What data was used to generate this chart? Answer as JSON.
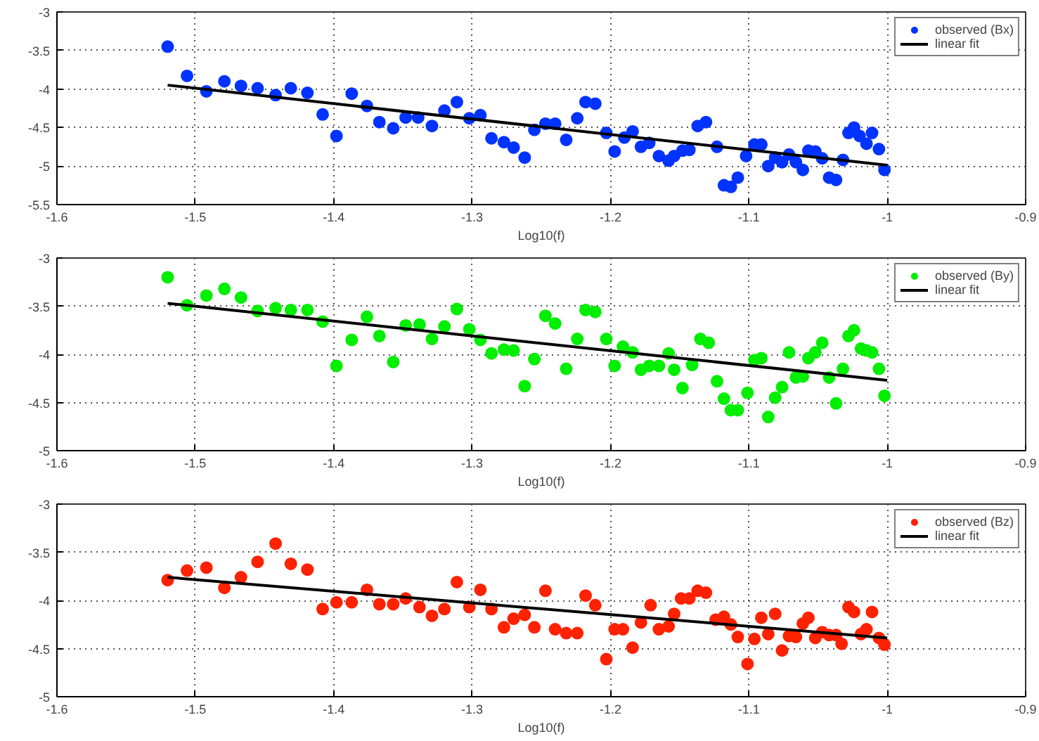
{
  "chart_data": [
    {
      "type": "scatter",
      "xlabel": "Log10(f)",
      "xlim": [
        -1.6,
        -0.9
      ],
      "xticks": [
        -1.6,
        -1.5,
        -1.4,
        -1.3,
        -1.2,
        -1.1,
        -1,
        -0.9
      ],
      "ylim": [
        -5.5,
        -3
      ],
      "yticks": [
        -5.5,
        -5,
        -4.5,
        -4,
        -3.5,
        -3
      ],
      "grid": true,
      "legend": "top right",
      "marker": "circle",
      "series": [
        {
          "name": "observed (Bx)",
          "color": "#0033ff",
          "x": [
            -1.52,
            -1.506,
            -1.492,
            -1.479,
            -1.467,
            -1.455,
            -1.442,
            -1.431,
            -1.419,
            -1.408,
            -1.398,
            -1.387,
            -1.376,
            -1.367,
            -1.357,
            -1.348,
            -1.339,
            -1.329,
            -1.32,
            -1.311,
            -1.302,
            -1.294,
            -1.286,
            -1.277,
            -1.27,
            -1.262,
            -1.255,
            -1.247,
            -1.24,
            -1.232,
            -1.224,
            -1.218,
            -1.211,
            -1.203,
            -1.197,
            -1.19,
            -1.184,
            -1.178,
            -1.172,
            -1.165,
            -1.158,
            -1.154,
            -1.148,
            -1.143,
            -1.137,
            -1.131,
            -1.123,
            -1.118,
            -1.113,
            -1.108,
            -1.102,
            -1.096,
            -1.091,
            -1.086,
            -1.081,
            -1.076,
            -1.071,
            -1.066,
            -1.061,
            -1.057,
            -1.052,
            -1.047,
            -1.042,
            -1.037,
            -1.032,
            -1.028,
            -1.024,
            -1.02,
            -1.015,
            -1.011,
            -1.006,
            -1.002
          ],
          "values": [
            -3.45,
            -3.83,
            -4.03,
            -3.9,
            -3.96,
            -3.99,
            -4.08,
            -3.99,
            -4.05,
            -4.33,
            -4.61,
            -4.06,
            -4.22,
            -4.43,
            -4.51,
            -4.37,
            -4.37,
            -4.48,
            -4.28,
            -4.17,
            -4.38,
            -4.34,
            -4.64,
            -4.69,
            -4.76,
            -4.89,
            -4.53,
            -4.45,
            -4.45,
            -4.66,
            -4.38,
            -4.17,
            -4.19,
            -4.57,
            -4.81,
            -4.63,
            -4.55,
            -4.75,
            -4.7,
            -4.87,
            -4.93,
            -4.87,
            -4.8,
            -4.79,
            -4.48,
            -4.43,
            -4.75,
            -5.25,
            -5.27,
            -5.15,
            -4.87,
            -4.72,
            -4.72,
            -5.0,
            -4.89,
            -4.95,
            -4.85,
            -4.95,
            -5.05,
            -4.8,
            -4.81,
            -4.9,
            -5.15,
            -5.18,
            -4.92,
            -4.57,
            -4.5,
            -4.61,
            -4.71,
            -4.57,
            -4.78,
            -5.05
          ]
        },
        {
          "name": "linear fit",
          "type": "line",
          "color": "#000000",
          "x": [
            -1.52,
            -1.0
          ],
          "values": [
            -3.95,
            -4.99
          ],
          "marker": "none"
        }
      ]
    },
    {
      "type": "scatter",
      "xlabel": "Log10(f)",
      "xlim": [
        -1.6,
        -0.9
      ],
      "xticks": [
        -1.6,
        -1.5,
        -1.4,
        -1.3,
        -1.2,
        -1.1,
        -1,
        -0.9
      ],
      "ylim": [
        -5,
        -3
      ],
      "yticks": [
        -5,
        -4.5,
        -4,
        -3.5,
        -3
      ],
      "grid": true,
      "legend": "top right",
      "marker": "circle",
      "series": [
        {
          "name": "observed (By)",
          "color": "#00ee00",
          "x": [
            -1.52,
            -1.506,
            -1.492,
            -1.479,
            -1.467,
            -1.455,
            -1.442,
            -1.431,
            -1.419,
            -1.408,
            -1.398,
            -1.387,
            -1.376,
            -1.367,
            -1.357,
            -1.348,
            -1.338,
            -1.329,
            -1.32,
            -1.311,
            -1.302,
            -1.294,
            -1.286,
            -1.277,
            -1.27,
            -1.262,
            -1.255,
            -1.247,
            -1.24,
            -1.232,
            -1.224,
            -1.218,
            -1.211,
            -1.203,
            -1.197,
            -1.191,
            -1.184,
            -1.178,
            -1.172,
            -1.165,
            -1.158,
            -1.154,
            -1.148,
            -1.141,
            -1.135,
            -1.129,
            -1.123,
            -1.118,
            -1.113,
            -1.108,
            -1.101,
            -1.096,
            -1.091,
            -1.086,
            -1.081,
            -1.076,
            -1.071,
            -1.066,
            -1.061,
            -1.057,
            -1.052,
            -1.047,
            -1.042,
            -1.037,
            -1.032,
            -1.028,
            -1.024,
            -1.019,
            -1.015,
            -1.011,
            -1.006,
            -1.002
          ],
          "values": [
            -3.2,
            -3.49,
            -3.39,
            -3.32,
            -3.41,
            -3.55,
            -3.52,
            -3.54,
            -3.54,
            -3.66,
            -4.12,
            -3.85,
            -3.61,
            -3.81,
            -4.08,
            -3.7,
            -3.69,
            -3.84,
            -3.71,
            -3.53,
            -3.74,
            -3.85,
            -3.99,
            -3.95,
            -3.96,
            -4.33,
            -4.05,
            -3.6,
            -3.68,
            -4.15,
            -3.84,
            -3.54,
            -3.56,
            -3.84,
            -4.12,
            -3.92,
            -3.98,
            -4.16,
            -4.12,
            -4.12,
            -3.99,
            -4.16,
            -4.35,
            -4.11,
            -3.84,
            -3.88,
            -4.28,
            -4.46,
            -4.58,
            -4.58,
            -4.4,
            -4.06,
            -4.04,
            -4.65,
            -4.45,
            -4.34,
            -3.98,
            -4.24,
            -4.23,
            -4.04,
            -3.98,
            -3.88,
            -4.24,
            -4.51,
            -4.15,
            -3.81,
            -3.75,
            -3.94,
            -3.96,
            -3.98,
            -4.15,
            -4.43
          ]
        },
        {
          "name": "linear fit",
          "type": "line",
          "color": "#000000",
          "x": [
            -1.52,
            -1.0
          ],
          "values": [
            -3.47,
            -4.27
          ],
          "marker": "none"
        }
      ]
    },
    {
      "type": "scatter",
      "xlabel": "Log10(f)",
      "xlim": [
        -1.6,
        -0.9
      ],
      "xticks": [
        -1.6,
        -1.5,
        -1.4,
        -1.3,
        -1.2,
        -1.1,
        -1,
        -0.9
      ],
      "ylim": [
        -5,
        -3
      ],
      "yticks": [
        -5,
        -4.5,
        -4,
        -3.5,
        -3
      ],
      "grid": true,
      "legend": "top right",
      "marker": "circle",
      "series": [
        {
          "name": "observed (Bz)",
          "color": "#ff2200",
          "x": [
            -1.52,
            -1.506,
            -1.492,
            -1.479,
            -1.467,
            -1.455,
            -1.442,
            -1.431,
            -1.419,
            -1.408,
            -1.398,
            -1.387,
            -1.376,
            -1.367,
            -1.357,
            -1.348,
            -1.338,
            -1.329,
            -1.32,
            -1.311,
            -1.302,
            -1.294,
            -1.286,
            -1.277,
            -1.27,
            -1.262,
            -1.255,
            -1.247,
            -1.24,
            -1.232,
            -1.224,
            -1.218,
            -1.211,
            -1.203,
            -1.197,
            -1.191,
            -1.184,
            -1.178,
            -1.171,
            -1.165,
            -1.158,
            -1.154,
            -1.149,
            -1.143,
            -1.137,
            -1.131,
            -1.124,
            -1.118,
            -1.113,
            -1.108,
            -1.101,
            -1.096,
            -1.091,
            -1.086,
            -1.081,
            -1.076,
            -1.071,
            -1.066,
            -1.061,
            -1.057,
            -1.052,
            -1.047,
            -1.042,
            -1.037,
            -1.033,
            -1.028,
            -1.024,
            -1.019,
            -1.015,
            -1.011,
            -1.006,
            -1.002
          ],
          "values": [
            -3.79,
            -3.69,
            -3.66,
            -3.87,
            -3.76,
            -3.6,
            -3.41,
            -3.62,
            -3.68,
            -4.09,
            -4.02,
            -4.02,
            -3.89,
            -4.04,
            -4.04,
            -3.98,
            -4.07,
            -4.16,
            -4.09,
            -3.81,
            -4.07,
            -3.89,
            -4.09,
            -4.28,
            -4.19,
            -4.15,
            -4.28,
            -3.9,
            -4.3,
            -4.34,
            -4.34,
            -3.95,
            -4.05,
            -4.61,
            -4.3,
            -4.3,
            -4.49,
            -4.23,
            -4.05,
            -4.3,
            -4.27,
            -4.14,
            -3.98,
            -3.98,
            -3.9,
            -3.92,
            -4.2,
            -4.17,
            -4.25,
            -4.38,
            -4.66,
            -4.4,
            -4.18,
            -4.35,
            -4.14,
            -4.52,
            -4.37,
            -4.38,
            -4.24,
            -4.18,
            -4.39,
            -4.33,
            -4.36,
            -4.36,
            -4.45,
            -4.07,
            -4.12,
            -4.35,
            -4.3,
            -4.12,
            -4.39,
            -4.46
          ]
        },
        {
          "name": "linear fit",
          "type": "line",
          "color": "#000000",
          "x": [
            -1.52,
            -1.0
          ],
          "values": [
            -3.76,
            -4.39
          ],
          "marker": "none"
        }
      ]
    }
  ]
}
